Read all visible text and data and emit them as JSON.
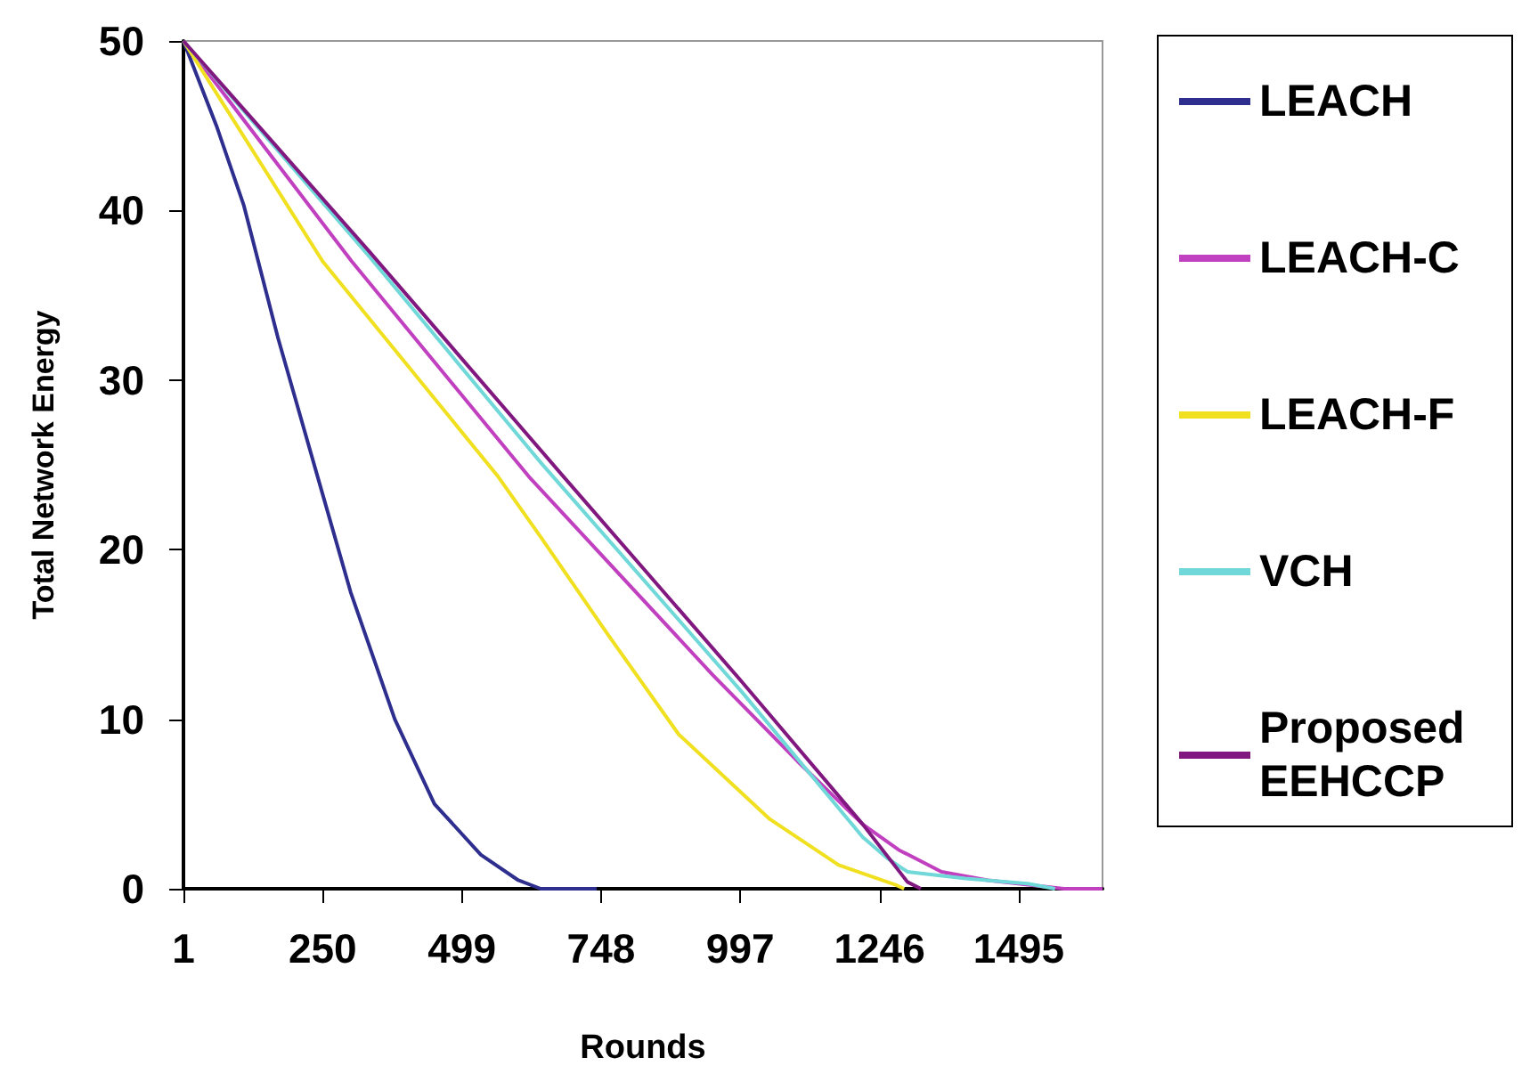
{
  "chart_data": {
    "type": "line",
    "xlabel": "Rounds",
    "ylabel": "Total Network Energy",
    "xlim": [
      1,
      1645
    ],
    "xticks": [
      1,
      250,
      499,
      748,
      997,
      1246,
      1495
    ],
    "ylim": [
      0,
      50
    ],
    "yticks": [
      0,
      10,
      20,
      30,
      40,
      50
    ],
    "grid": false,
    "legend": "right",
    "marker": "none",
    "line_style": "solid",
    "series": [
      {
        "name": "LEACH",
        "color": "#2e2e8f",
        "x": [
          1,
          60,
          109,
          170,
          241,
          300,
          379,
          450,
          533,
          600,
          640,
          740
        ],
        "values": [
          50,
          45,
          40.3,
          32.5,
          24.3,
          17.5,
          10,
          5,
          2,
          0.5,
          0,
          0
        ]
      },
      {
        "name": "LEACH-C",
        "color": "#c040c0",
        "x": [
          1,
          302,
          619,
          948,
          1100,
          1216,
          1280,
          1357,
          1440,
          1576,
          1645
        ],
        "values": [
          50,
          37,
          24.3,
          12.6,
          7.5,
          3.8,
          2.3,
          1.0,
          0.5,
          0,
          0
        ]
      },
      {
        "name": "LEACH-F",
        "color": "#f0e020",
        "x": [
          1,
          250,
          564,
          641,
          760,
          887,
          1050,
          1173,
          1277,
          1290
        ],
        "values": [
          50,
          37,
          24.3,
          20.7,
          15,
          9.1,
          4.1,
          1.4,
          0.2,
          0
        ]
      },
      {
        "name": "VCH",
        "color": "#70d8d8",
        "x": [
          1,
          333,
          641,
          1000,
          1216,
          1260,
          1296,
          1400,
          1511,
          1560
        ],
        "values": [
          50,
          37.3,
          25.1,
          11.6,
          3.05,
          1.8,
          1.0,
          0.6,
          0.3,
          0
        ]
      },
      {
        "name": "Proposed EEHCCP",
        "color": "#801880",
        "x": [
          1,
          333,
          681,
          1000,
          1216,
          1296,
          1320
        ],
        "values": [
          50,
          37.6,
          24.3,
          12.2,
          3.8,
          0.4,
          0
        ]
      }
    ]
  }
}
